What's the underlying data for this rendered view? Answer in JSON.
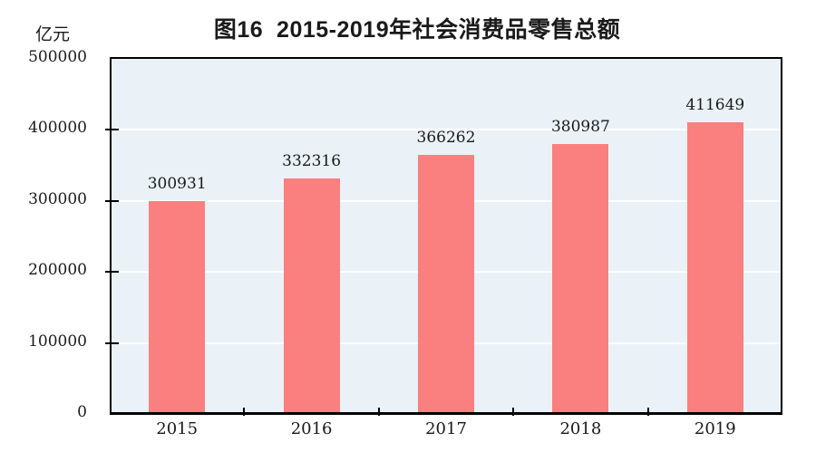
{
  "title": "图16  2015-2019年社会消费品零售总额",
  "y_axis": {
    "unit_label": "亿元",
    "ticks": [
      "0",
      "100000",
      "200000",
      "300000",
      "400000",
      "500000"
    ]
  },
  "chart_data": {
    "type": "bar",
    "title": "图16 2015-2019年社会消费品零售总额",
    "categories": [
      "2015",
      "2016",
      "2017",
      "2018",
      "2019"
    ],
    "values": [
      300931,
      332316,
      366262,
      380987,
      411649
    ],
    "xlabel": "",
    "ylabel": "亿元",
    "ylim": [
      0,
      500000
    ],
    "grid": "horizontal white lines every 100000",
    "legend": "none",
    "bar_labels_shown": true
  },
  "colors": {
    "bar": "#fa7f7f",
    "plot_background": "#eaf2f7",
    "gridline": "#ffffff",
    "axis": "#000000",
    "text": "#1a1a1a"
  }
}
